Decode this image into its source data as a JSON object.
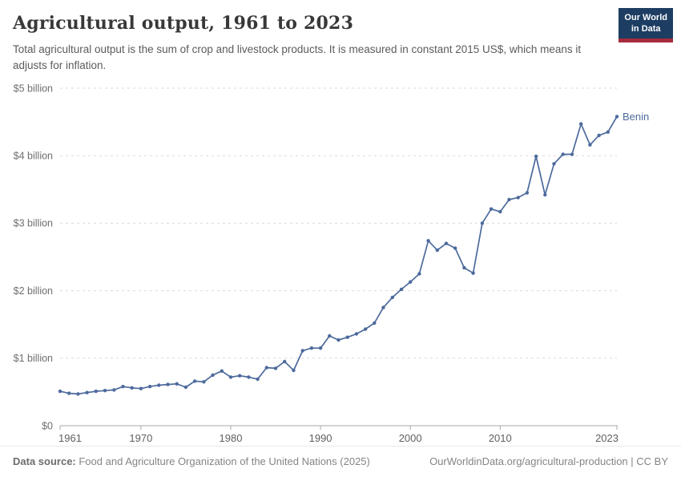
{
  "header": {
    "title": "Agricultural output, 1961 to 2023",
    "subtitle": "Total agricultural output is the sum of crop and livestock products. It is measured in constant 2015 US$, which means it adjusts for inflation.",
    "logo": {
      "line1": "Our World",
      "line2": "in Data",
      "bg_color": "#1d3d63",
      "accent_color": "#a52c3d"
    }
  },
  "chart_data": {
    "type": "line",
    "title": "Agricultural output, 1961 to 2023",
    "xlabel": "",
    "ylabel": "",
    "unit": "constant 2015 US$",
    "xlim": [
      1961,
      2023
    ],
    "ylim": [
      0,
      5
    ],
    "grid": "horizontal-dashed",
    "legend_position": "end-of-line",
    "x_ticks": [
      1961,
      1970,
      1980,
      1990,
      2000,
      2010,
      2023
    ],
    "y_ticks": [
      {
        "value": 0,
        "label": "$0"
      },
      {
        "value": 1,
        "label": "$1 billion"
      },
      {
        "value": 2,
        "label": "$2 billion"
      },
      {
        "value": 3,
        "label": "$3 billion"
      },
      {
        "value": 4,
        "label": "$4 billion"
      },
      {
        "value": 5,
        "label": "$5 billion"
      }
    ],
    "series": [
      {
        "name": "Benin",
        "color": "#4c6a9c",
        "x": [
          1961,
          1962,
          1963,
          1964,
          1965,
          1966,
          1967,
          1968,
          1969,
          1970,
          1971,
          1972,
          1973,
          1974,
          1975,
          1976,
          1977,
          1978,
          1979,
          1980,
          1981,
          1982,
          1983,
          1984,
          1985,
          1986,
          1987,
          1988,
          1989,
          1990,
          1991,
          1992,
          1993,
          1994,
          1995,
          1996,
          1997,
          1998,
          1999,
          2000,
          2001,
          2002,
          2003,
          2004,
          2005,
          2006,
          2007,
          2008,
          2009,
          2010,
          2011,
          2012,
          2013,
          2014,
          2015,
          2016,
          2017,
          2018,
          2019,
          2020,
          2021,
          2022,
          2023
        ],
        "values": [
          0.51,
          0.48,
          0.47,
          0.49,
          0.51,
          0.52,
          0.53,
          0.58,
          0.56,
          0.55,
          0.58,
          0.6,
          0.61,
          0.62,
          0.57,
          0.66,
          0.65,
          0.75,
          0.81,
          0.72,
          0.74,
          0.72,
          0.69,
          0.86,
          0.85,
          0.95,
          0.82,
          1.11,
          1.15,
          1.15,
          1.33,
          1.27,
          1.31,
          1.36,
          1.43,
          1.52,
          1.75,
          1.9,
          2.02,
          2.13,
          2.25,
          2.74,
          2.6,
          2.7,
          2.63,
          2.34,
          2.26,
          3.0,
          3.21,
          3.17,
          3.35,
          3.38,
          3.45,
          3.99,
          3.42,
          3.88,
          4.02,
          4.02,
          4.47,
          4.16,
          4.3,
          4.35,
          4.58
        ]
      }
    ]
  },
  "footer": {
    "source_label": "Data source:",
    "source_text": " Food and Agriculture Organization of the United Nations (2025)",
    "rights": "OurWorldinData.org/agricultural-production | CC BY"
  }
}
